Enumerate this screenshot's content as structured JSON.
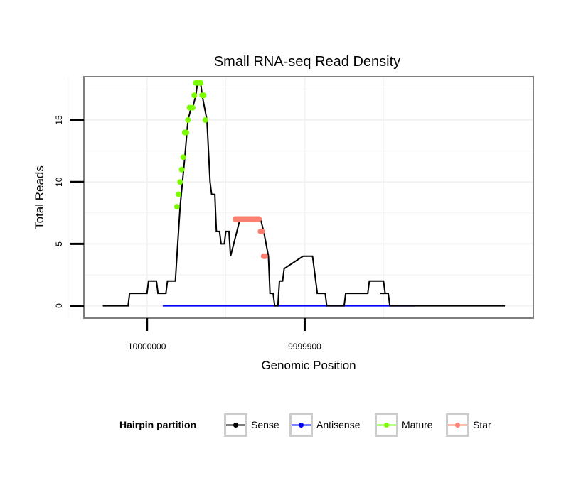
{
  "chart_data": {
    "type": "line",
    "title": "Small RNA-seq Read Density",
    "xlabel": "Genomic Position",
    "ylabel": "Total Reads",
    "x_reversed": true,
    "xlim": [
      10000040,
      9999755
    ],
    "ylim": [
      -1,
      18.5
    ],
    "x_ticks": [
      10000000,
      9999900
    ],
    "x_tick_labels": [
      "10000000",
      "9999900"
    ],
    "y_ticks": [
      0,
      5,
      10,
      15
    ],
    "y_tick_labels": [
      "0",
      "5",
      "10",
      "15"
    ],
    "grid": true,
    "legend": {
      "title": "Hairpin partition",
      "position": "bottom",
      "entries": [
        {
          "label": "Sense",
          "color": "#000000"
        },
        {
          "label": "Antisense",
          "color": "#0000ff"
        },
        {
          "label": "Mature",
          "color": "#7cfc00"
        },
        {
          "label": "Star",
          "color": "#fa8072"
        }
      ]
    },
    "series": [
      {
        "name": "Sense",
        "color": "#000000",
        "x": [
          10000028,
          10000012,
          10000011,
          10000000,
          9999999,
          9999994,
          9999993,
          9999988,
          9999987,
          9999982,
          9999981,
          9999979,
          9999976,
          9999974,
          9999972,
          9999971,
          9999969,
          9999968,
          9999966,
          9999965,
          9999962,
          9999960,
          9999959,
          9999957,
          9999956,
          9999954,
          9999953,
          9999951,
          9999950,
          9999948,
          9999947,
          9999945,
          9999941,
          9999939,
          9999936,
          9999934,
          9999928,
          9999926,
          9999923,
          9999922,
          9999920,
          9999919,
          9999917,
          9999916,
          9999914,
          9999913,
          9999901,
          9999900,
          9999896,
          9999895,
          9999893,
          9999892,
          9999887,
          9999886,
          9999875,
          9999874,
          9999860,
          9999859,
          9999855,
          9999850,
          9999849,
          9999852,
          9999847,
          9999846,
          9999835,
          9999833,
          9999830,
          9999829,
          9999826,
          9999825,
          9999773
        ],
        "y": [
          0,
          0,
          1,
          1,
          2,
          2,
          1,
          1,
          2,
          2,
          4,
          8,
          12,
          15,
          16,
          16,
          17,
          18,
          18,
          17,
          15,
          10,
          9,
          9,
          6,
          6,
          5,
          5,
          6,
          6,
          4,
          5,
          7,
          7,
          7,
          7,
          7,
          6,
          4,
          1,
          1,
          0,
          0,
          2,
          2,
          3,
          4,
          4,
          4,
          4,
          2,
          1,
          1,
          0,
          0,
          1,
          1,
          2,
          2,
          2,
          1,
          1,
          1,
          0,
          0,
          0,
          0,
          0,
          0,
          0,
          0
        ]
      },
      {
        "name": "Antisense",
        "color": "#0000ff",
        "x": [
          9999990,
          9999830
        ],
        "y": [
          0,
          0
        ]
      },
      {
        "name": "Mature",
        "color": "#7cfc00",
        "x": [
          9999981,
          9999980,
          9999979,
          9999978,
          9999977,
          9999976,
          9999975,
          9999974,
          9999973,
          9999972,
          9999971,
          9999970,
          9999969,
          9999968,
          9999967,
          9999966,
          9999965,
          9999964,
          9999963
        ],
        "y": [
          8,
          9,
          10,
          11,
          12,
          14,
          14,
          15,
          16,
          16,
          16,
          17,
          18,
          18,
          18,
          18,
          17,
          17,
          15
        ]
      },
      {
        "name": "Star",
        "color": "#fa8072",
        "x": [
          9999944,
          9999943,
          9999942,
          9999941,
          9999940,
          9999939,
          9999938,
          9999937,
          9999936,
          9999935,
          9999934,
          9999933,
          9999932,
          9999931,
          9999930,
          9999929,
          9999928,
          9999927,
          9999926,
          9999925
        ],
        "y": [
          7,
          7,
          7,
          7,
          7,
          7,
          7,
          7,
          7,
          7,
          7,
          7,
          7,
          7,
          7,
          7,
          6,
          6,
          4,
          4
        ]
      }
    ]
  }
}
